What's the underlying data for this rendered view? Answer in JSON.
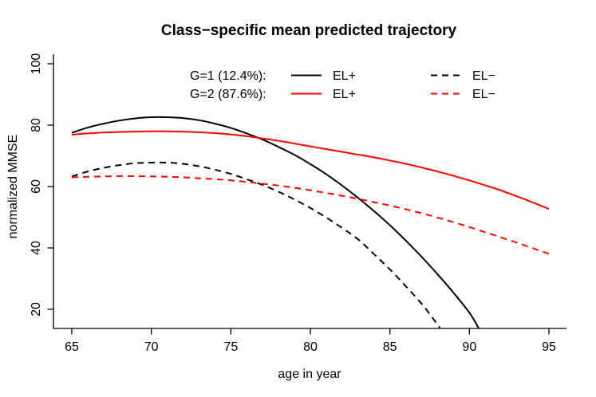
{
  "title": "Class−specific mean predicted trajectory",
  "chart_data": {
    "type": "line",
    "title": "Class−specific mean predicted trajectory",
    "xlabel": "age in year",
    "ylabel": "normalized MMSE",
    "xlim": [
      63.8,
      96.2
    ],
    "ylim": [
      13.7,
      103.1
    ],
    "x_ticks": [
      65,
      70,
      75,
      80,
      85,
      90,
      95
    ],
    "y_ticks": [
      20,
      40,
      60,
      80,
      100
    ],
    "grid": false,
    "axis_color": "#000000",
    "legend": {
      "position": "top-center-inside",
      "rows": [
        {
          "group_label": "G=1 (12.4%):",
          "solid_label": "EL+",
          "dashed_label": "EL−",
          "color": "#000000"
        },
        {
          "group_label": "G=2 (87.6%):",
          "solid_label": "EL+",
          "dashed_label": "EL−",
          "color": "#ff0000"
        }
      ]
    },
    "series": [
      {
        "id": "g1-el-plus",
        "name": "G=1 (12.4%) EL+",
        "color": "#000000",
        "style": "solid",
        "points": [
          [
            65,
            77.5
          ],
          [
            66,
            79.2
          ],
          [
            67,
            80.5
          ],
          [
            68,
            81.5
          ],
          [
            69,
            82.2
          ],
          [
            70,
            82.6
          ],
          [
            71,
            82.6
          ],
          [
            72,
            82.3
          ],
          [
            73,
            81.6
          ],
          [
            74,
            80.5
          ],
          [
            75,
            79.1
          ],
          [
            76,
            77.3
          ],
          [
            77,
            75.3
          ],
          [
            78,
            72.9
          ],
          [
            79,
            70.3
          ],
          [
            80,
            67.3
          ],
          [
            81,
            64.0
          ],
          [
            82,
            60.3
          ],
          [
            83,
            56.3
          ],
          [
            84,
            52.0
          ],
          [
            85,
            47.4
          ],
          [
            86,
            42.4
          ],
          [
            87,
            37.1
          ],
          [
            88,
            31.4
          ],
          [
            89,
            25.4
          ],
          [
            90,
            18.9
          ],
          [
            90.6,
            13.7
          ]
        ]
      },
      {
        "id": "g1-el-minus",
        "name": "G=1 (12.4%) EL−",
        "color": "#000000",
        "style": "dashed",
        "points": [
          [
            65,
            63.3
          ],
          [
            66,
            64.9
          ],
          [
            67,
            66.1
          ],
          [
            68,
            67.0
          ],
          [
            69,
            67.6
          ],
          [
            70,
            67.8
          ],
          [
            71,
            67.8
          ],
          [
            72,
            67.4
          ],
          [
            73,
            66.6
          ],
          [
            74,
            65.5
          ],
          [
            75,
            64.1
          ],
          [
            76,
            62.4
          ],
          [
            77,
            60.5
          ],
          [
            78,
            58.3
          ],
          [
            79,
            55.8
          ],
          [
            80,
            53.0
          ],
          [
            81,
            49.9
          ],
          [
            82,
            46.5
          ],
          [
            83,
            42.8
          ],
          [
            84,
            38.0
          ],
          [
            85,
            33.0
          ],
          [
            86,
            27.5
          ],
          [
            87,
            21.8
          ],
          [
            88,
            15.0
          ],
          [
            88.15,
            13.7
          ]
        ]
      },
      {
        "id": "g2-el-plus",
        "name": "G=2 (87.6%) EL+",
        "color": "#ff0000",
        "style": "solid",
        "points": [
          [
            65,
            76.9
          ],
          [
            66,
            77.3
          ],
          [
            67,
            77.6
          ],
          [
            68,
            77.8
          ],
          [
            69,
            77.9
          ],
          [
            70,
            78.0
          ],
          [
            71,
            78.0
          ],
          [
            72,
            77.9
          ],
          [
            73,
            77.7
          ],
          [
            74,
            77.4
          ],
          [
            75,
            77.0
          ],
          [
            76,
            76.4
          ],
          [
            77,
            75.7
          ],
          [
            78,
            74.9
          ],
          [
            79,
            74.0
          ],
          [
            80,
            73.1
          ],
          [
            81,
            72.2
          ],
          [
            82,
            71.3
          ],
          [
            83,
            70.4
          ],
          [
            84,
            69.5
          ],
          [
            85,
            68.5
          ],
          [
            86,
            67.4
          ],
          [
            87,
            66.2
          ],
          [
            88,
            64.9
          ],
          [
            89,
            63.5
          ],
          [
            90,
            62.0
          ],
          [
            91,
            60.4
          ],
          [
            92,
            58.7
          ],
          [
            93,
            56.8
          ],
          [
            94,
            54.8
          ],
          [
            95,
            52.7
          ]
        ]
      },
      {
        "id": "g2-el-minus",
        "name": "G=2 (87.6%) EL−",
        "color": "#ff0000",
        "style": "dashed",
        "points": [
          [
            65,
            63.0
          ],
          [
            66,
            63.2
          ],
          [
            67,
            63.3
          ],
          [
            68,
            63.4
          ],
          [
            69,
            63.4
          ],
          [
            70,
            63.3
          ],
          [
            71,
            63.2
          ],
          [
            72,
            63.0
          ],
          [
            73,
            62.7
          ],
          [
            74,
            62.4
          ],
          [
            75,
            62.0
          ],
          [
            76,
            61.5
          ],
          [
            77,
            60.9
          ],
          [
            78,
            60.3
          ],
          [
            79,
            59.6
          ],
          [
            80,
            58.8
          ],
          [
            81,
            57.9
          ],
          [
            82,
            57.0
          ],
          [
            83,
            56.0
          ],
          [
            84,
            54.9
          ],
          [
            85,
            53.8
          ],
          [
            86,
            52.6
          ],
          [
            87,
            51.3
          ],
          [
            88,
            49.9
          ],
          [
            89,
            48.4
          ],
          [
            90,
            46.8
          ],
          [
            91,
            45.1
          ],
          [
            92,
            43.4
          ],
          [
            93,
            41.7
          ],
          [
            94,
            39.9
          ],
          [
            95,
            38.1
          ]
        ]
      }
    ]
  }
}
